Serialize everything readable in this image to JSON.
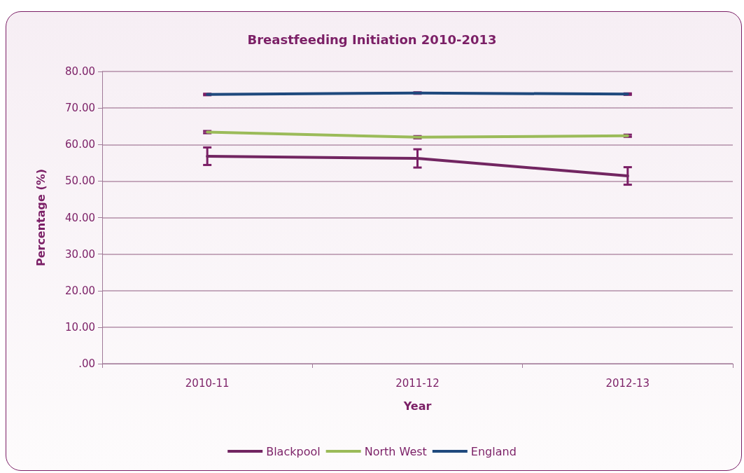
{
  "chart_data": {
    "type": "line",
    "title": "Breastfeeding Initiation 2010-2013",
    "xlabel": "Year",
    "ylabel": "Percentage (%)",
    "categories": [
      "2010-11",
      "2011-12",
      "2012-13"
    ],
    "series": [
      {
        "name": "Blackpool",
        "color": "#722561",
        "values": [
          56.8,
          56.2,
          51.4
        ],
        "errors": [
          2.4,
          2.5,
          2.4
        ]
      },
      {
        "name": "North West",
        "color": "#9bbb59",
        "values": [
          63.4,
          62.0,
          62.4
        ],
        "errors": [
          0.3,
          0.3,
          0.3
        ]
      },
      {
        "name": "England",
        "color": "#1f497d",
        "values": [
          73.7,
          74.1,
          73.8
        ],
        "errors": [
          0.2,
          0.2,
          0.2
        ]
      }
    ],
    "ylim": [
      0,
      80
    ],
    "yticks": [
      {
        "value": 0,
        "label": ".00"
      },
      {
        "value": 10,
        "label": "10.00"
      },
      {
        "value": 20,
        "label": "20.00"
      },
      {
        "value": 30,
        "label": "30.00"
      },
      {
        "value": 40,
        "label": "40.00"
      },
      {
        "value": 50,
        "label": "50.00"
      },
      {
        "value": 60,
        "label": "60.00"
      },
      {
        "value": 70,
        "label": "70.00"
      },
      {
        "value": 80,
        "label": "80.00"
      }
    ],
    "grid": "y",
    "legend": "bottom",
    "marker": "none",
    "line_style": "solid"
  }
}
